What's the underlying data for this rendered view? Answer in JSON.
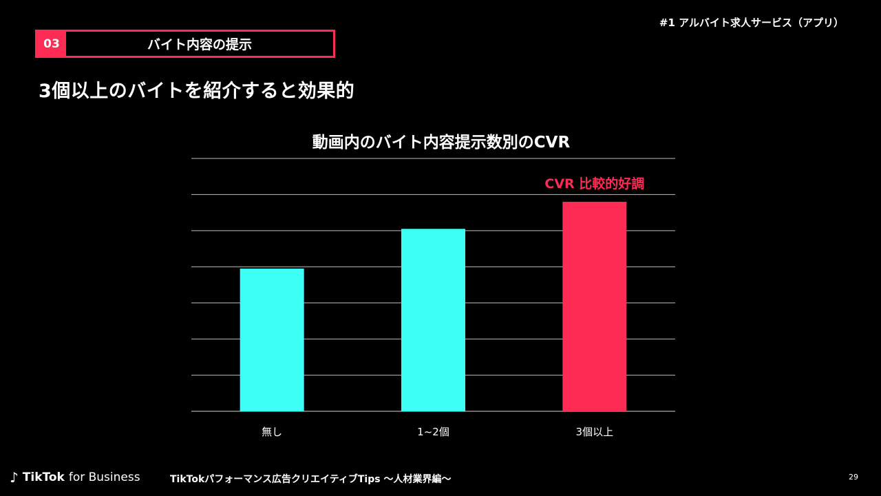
{
  "header": {
    "series_label": "#1 アルバイト求人サービス（アプリ）",
    "section_number": "03",
    "section_title": "バイト内容の提示",
    "headline": "3個以上のバイトを紹介すると効果的"
  },
  "chart_data": {
    "type": "bar",
    "title": "動画内のバイト内容提示数別のCVR",
    "categories": [
      "無し",
      "1~2個",
      "3個以上"
    ],
    "values": [
      3.95,
      5.05,
      5.8
    ],
    "ylim": [
      0,
      7
    ],
    "grid": true,
    "y_tick_labels_shown": false,
    "bar_colors": [
      "#3dfff3",
      "#3dfff3",
      "#fe2c55"
    ],
    "annotation": {
      "text": "CVR 比較的好調",
      "target_category": "3個以上",
      "color": "#fe2c55"
    }
  },
  "footer": {
    "brand": "TikTok",
    "brand_suffix": "for Business",
    "logo_icon": "tiktok-note-icon",
    "title": "TikTokパフォーマンス広告クリエイティブTips 〜人材業界編〜",
    "page_number": "29"
  },
  "colors": {
    "accent": "#fe2c55",
    "cyan": "#3dfff3",
    "background": "#000000"
  }
}
